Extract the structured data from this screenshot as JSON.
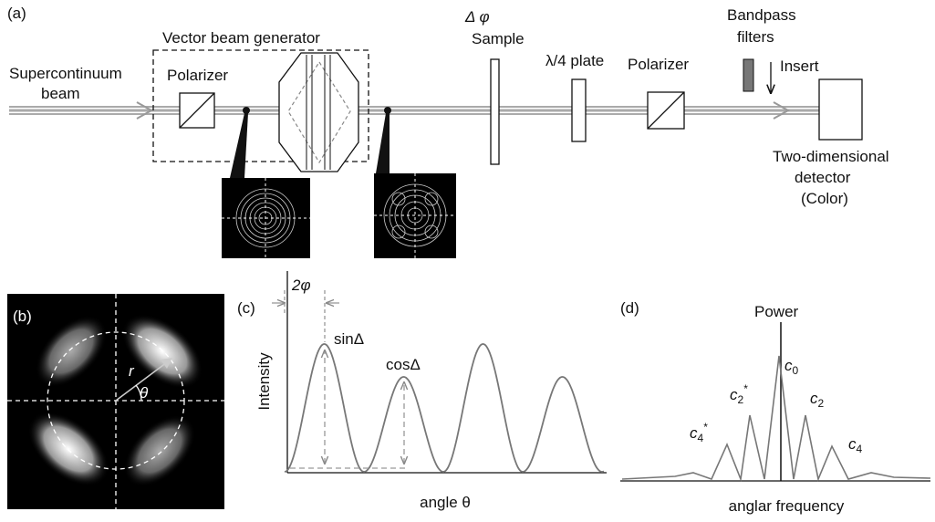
{
  "panel_a": {
    "label": "(a)",
    "source": [
      "Supercontinuum",
      "beam"
    ],
    "generator": "Vector beam generator",
    "polarizer_1": "Polarizer",
    "sample": {
      "symbols": "Δ  φ",
      "label": "Sample"
    },
    "waveplate": "λ/4 plate",
    "polarizer_2": "Polarizer",
    "filters": [
      "Bandpass",
      "filters"
    ],
    "insert": "Insert",
    "detector": [
      "Two-dimensional",
      "detector",
      "(Color)"
    ]
  },
  "panel_b": {
    "label": "(b)",
    "radius": "r",
    "angle": "θ"
  },
  "panel_c": {
    "label": "(c)",
    "y_label": "Intensity",
    "x_label": "angle θ",
    "period": "2φ",
    "first_peak": "sinΔ",
    "second_peak": "cosΔ"
  },
  "panel_d": {
    "label": "(d)",
    "y_label": "Power",
    "x_label": "anglar frequency",
    "peaks": [
      {
        "base": "c",
        "sub": "0"
      },
      {
        "base": "c",
        "sub": "2",
        "sup": "*"
      },
      {
        "base": "c",
        "sub": "2"
      },
      {
        "base": "c",
        "sub": "4",
        "sup": "*"
      },
      {
        "base": "c",
        "sub": "4"
      }
    ]
  }
}
